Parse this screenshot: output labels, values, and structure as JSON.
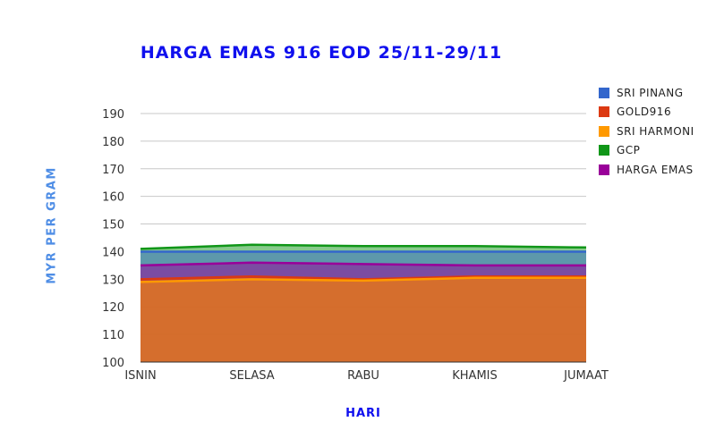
{
  "chart_data": {
    "type": "area",
    "title": "HARGA EMAS 916 EOD 25/11-29/11",
    "xlabel": "HARI",
    "ylabel": "MYR PER GRAM",
    "categories": [
      "ISNIN",
      "SELASA",
      "RABU",
      "KHAMIS",
      "JUMAAT"
    ],
    "ylim": [
      100,
      190
    ],
    "yticks": [
      100,
      110,
      120,
      130,
      140,
      150,
      160,
      170,
      180,
      190
    ],
    "grid": true,
    "legend_position": "right",
    "series": [
      {
        "name": "SRI PINANG",
        "color": "#3366cc",
        "values": [
          140,
          140,
          140,
          140,
          140
        ]
      },
      {
        "name": "GOLD916",
        "color": "#dc3912",
        "values": [
          130,
          131,
          130,
          131,
          131
        ]
      },
      {
        "name": "SRI HARMONI",
        "color": "#ff9900",
        "values": [
          129,
          130,
          129.5,
          130.5,
          130.5
        ]
      },
      {
        "name": "GCP",
        "color": "#109618",
        "values": [
          141,
          142.5,
          142,
          142,
          141.5
        ]
      },
      {
        "name": "HARGA EMAS",
        "color": "#990099",
        "values": [
          135,
          136,
          135.5,
          135,
          135
        ]
      }
    ]
  }
}
